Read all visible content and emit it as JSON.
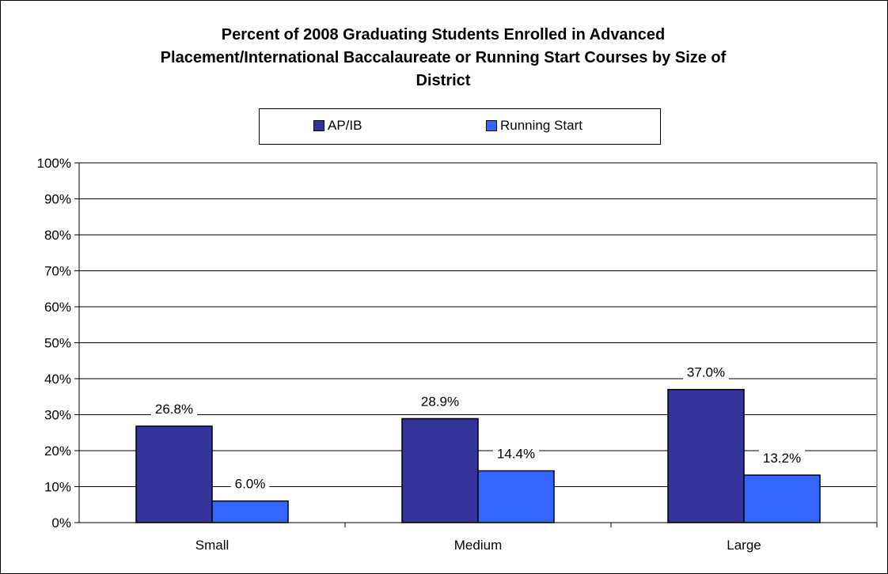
{
  "chart_data": {
    "type": "bar",
    "title_lines": [
      "Percent of 2008 Graduating Students Enrolled in Advanced",
      "Placement/International Baccalaureate or Running Start Courses by Size of",
      "District"
    ],
    "categories": [
      "Small",
      "Medium",
      "Large"
    ],
    "series": [
      {
        "name": "AP/IB",
        "values": [
          26.8,
          28.9,
          37.0
        ],
        "labels": [
          "26.8%",
          "28.9%",
          "37.0%"
        ],
        "color": "#333399"
      },
      {
        "name": "Running Start",
        "values": [
          6.0,
          14.4,
          13.2
        ],
        "labels": [
          "6.0%",
          "14.4%",
          "13.2%"
        ],
        "color": "#3366ff"
      }
    ],
    "ylim": [
      0,
      100
    ],
    "yticks": [
      "0%",
      "10%",
      "20%",
      "30%",
      "40%",
      "50%",
      "60%",
      "70%",
      "80%",
      "90%",
      "100%"
    ],
    "grid": true,
    "legend_position": "top"
  }
}
